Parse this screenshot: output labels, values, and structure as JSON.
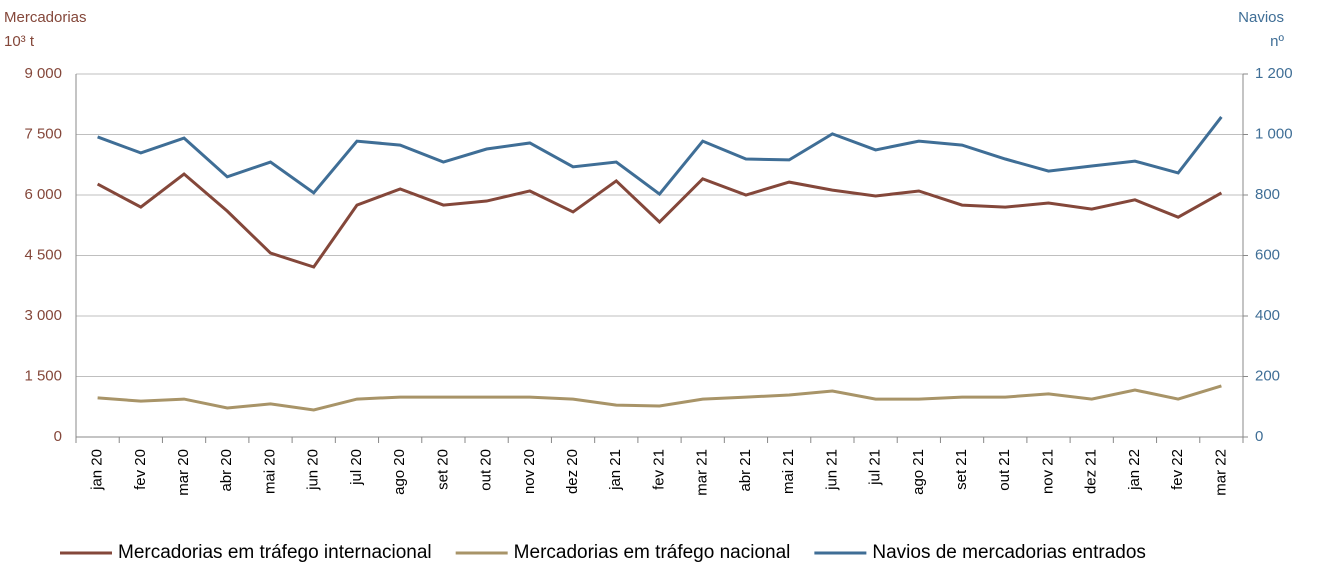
{
  "chart_data": {
    "type": "line",
    "y_label": [
      "Mercadorias",
      "10³ t"
    ],
    "y2_label": [
      "Navios",
      "nº"
    ],
    "categories": [
      "jan 20",
      "fev 20",
      "mar 20",
      "abr 20",
      "mai 20",
      "jun 20",
      "jul 20",
      "ago 20",
      "set 20",
      "out 20",
      "nov 20",
      "dez 20",
      "jan 21",
      "fev 21",
      "mar 21",
      "abr 21",
      "mai 21",
      "jun 21",
      "jul 21",
      "ago 21",
      "set 21",
      "out 21",
      "nov 21",
      "dez 21",
      "jan 22",
      "fev 22",
      "mar 22"
    ],
    "series": [
      {
        "name": "Mercadorias em tráfego internacional",
        "color": "#84473a",
        "axis": "y",
        "values": [
          6270,
          5700,
          6520,
          5600,
          4560,
          4215,
          5750,
          6150,
          5750,
          5850,
          6100,
          5580,
          6350,
          5330,
          6400,
          6000,
          6320,
          6120,
          5975,
          6100,
          5750,
          5700,
          5800,
          5650,
          5880,
          5450,
          6050
        ]
      },
      {
        "name": "Mercadorias em tráfego nacional",
        "color": "#a89468",
        "axis": "y",
        "values": [
          970,
          890,
          940,
          720,
          820,
          670,
          940,
          990,
          990,
          990,
          990,
          940,
          790,
          770,
          940,
          990,
          1040,
          1140,
          940,
          940,
          990,
          990,
          1070,
          940,
          1165,
          940,
          1265
        ]
      },
      {
        "name": "Navios de mercadorias entrados",
        "color": "#3f6e96",
        "axis": "y2",
        "values": [
          992,
          939,
          988,
          860,
          909,
          807,
          978,
          965,
          909,
          952,
          972,
          893,
          909,
          803,
          978,
          919,
          916,
          1002,
          949,
          978,
          965,
          919,
          879,
          896,
          912,
          873,
          1058
        ]
      }
    ],
    "ylim": [
      0,
      9000
    ],
    "yticks": [
      0,
      {
        "value": 1500,
        "label": "1 500"
      },
      {
        "value": 3000,
        "label": "3 000"
      },
      {
        "value": 4500,
        "label": "4 500"
      },
      {
        "value": 6000,
        "label": "6 000"
      },
      {
        "value": 7500,
        "label": "7 500"
      },
      {
        "value": 9000,
        "label": "9 000"
      }
    ],
    "y2lim": [
      0,
      1200
    ],
    "y2ticks": [
      0,
      200,
      400,
      600,
      800,
      {
        "value": 1000,
        "label": "1 000"
      },
      {
        "value": 1200,
        "label": "1 200"
      }
    ],
    "grid": true,
    "legend": "bottom"
  }
}
